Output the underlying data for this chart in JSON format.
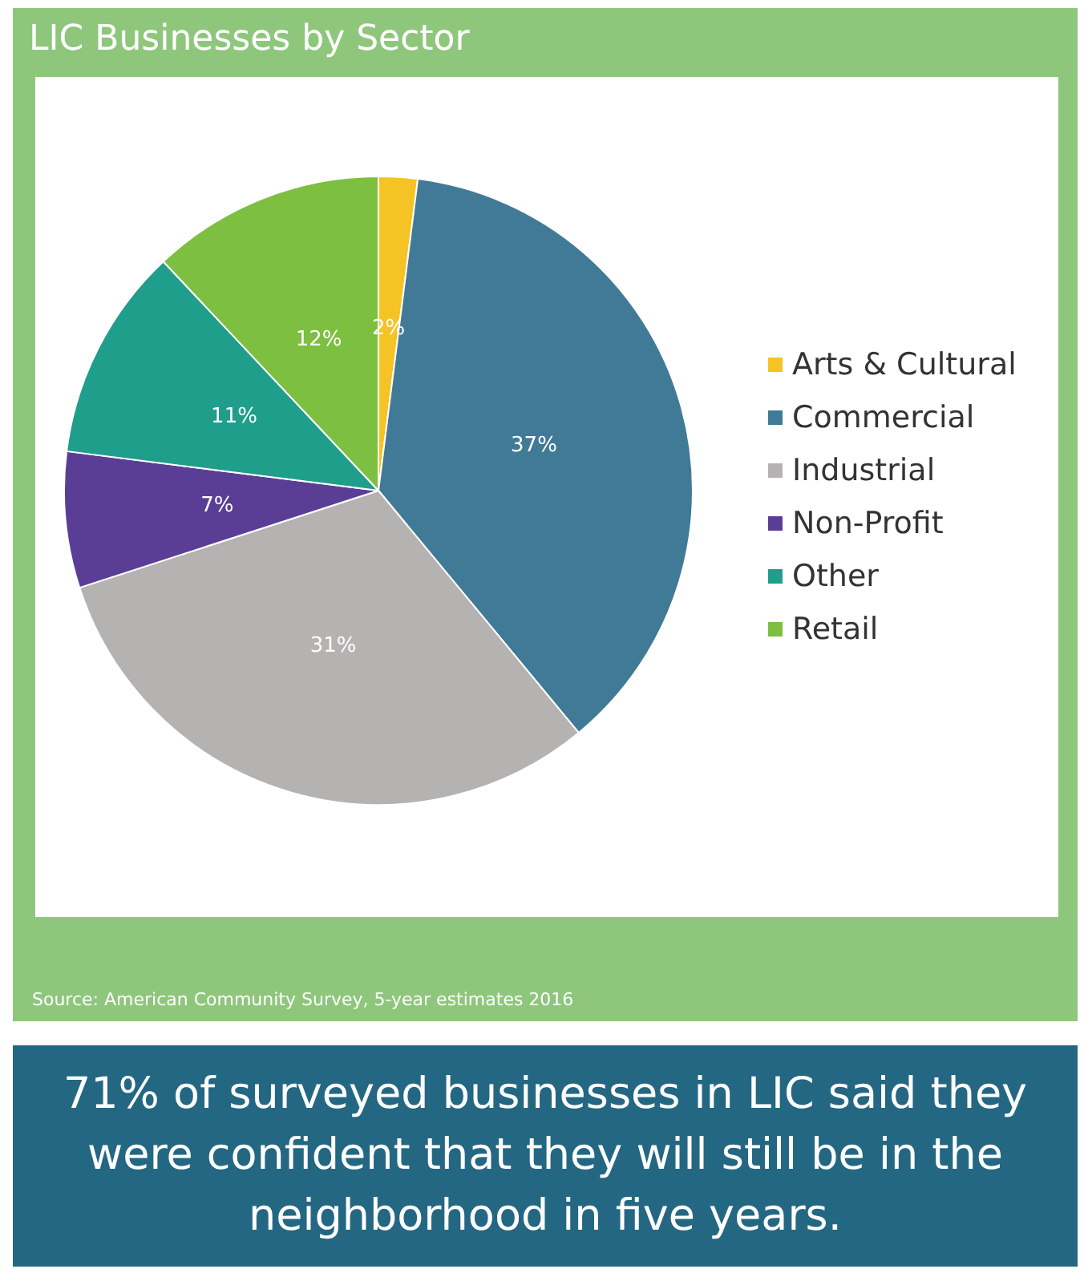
{
  "chart_data": {
    "type": "pie",
    "title": "LIC Businesses by Sector",
    "categories": [
      "Arts & Cultural",
      "Commercial",
      "Industrial",
      "Non-Profit",
      "Other",
      "Retail"
    ],
    "values": [
      2,
      37,
      31,
      7,
      11,
      12
    ],
    "colors": [
      "#f5c324",
      "#417a96",
      "#b5b2b2",
      "#5a3e96",
      "#1f9e8c",
      "#7dbf40"
    ],
    "value_labels": [
      "2%",
      "37%",
      "31%",
      "7%",
      "11%",
      "12%"
    ],
    "legend": "right",
    "annotations": [
      "Source: American Community Survey, 5-year estimates 2016",
      "71% of surveyed businesses in LIC said they were confident that they will still be in the neighborhood in five years."
    ]
  }
}
